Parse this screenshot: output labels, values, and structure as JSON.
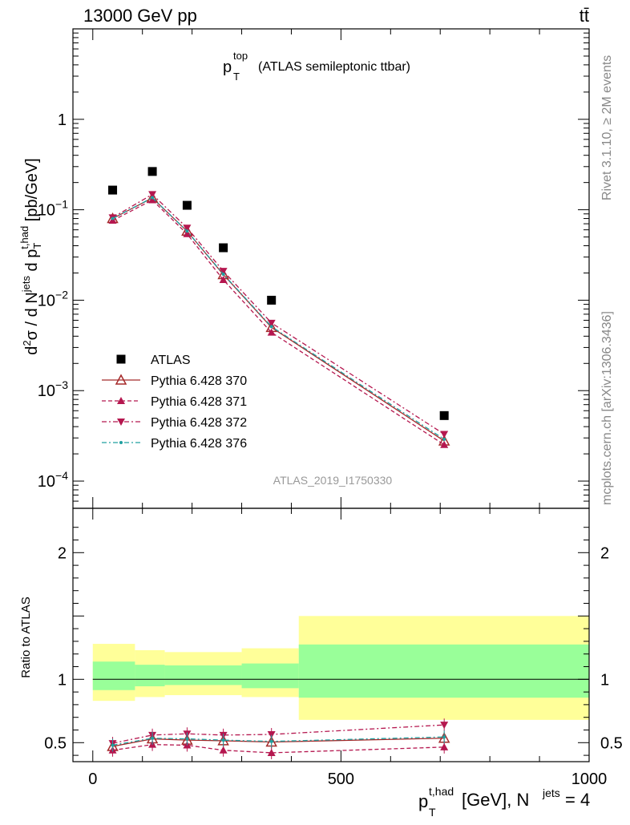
{
  "header": {
    "left_label": "13000 GeV pp",
    "right_label": "tt̄"
  },
  "side_labels": {
    "rivet": "Rivet 3.1.10, ≥ 2M events",
    "mcplots": "mcplots.cern.ch [arXiv:1306.3436]"
  },
  "watermark": "ATLAS_2019_I1750330",
  "chart_data": [
    {
      "type": "scatter",
      "title": "p_T^top (ATLAS semileptonic ttbar)",
      "title_main": "p",
      "title_sub": "T",
      "title_sup": "top",
      "title_rest": "(ATLAS semileptonic ttbar)",
      "ylabel": "d²σ / d N^jets d p_T^t,had [pb/GeV]",
      "yscale": "log",
      "ylim": [
        5e-05,
        10
      ],
      "xlim": [
        -40,
        1000
      ],
      "y_ticks": [
        {
          "value": 1,
          "label": "1"
        },
        {
          "value": 0.1,
          "base": "10",
          "exp": "−1"
        },
        {
          "value": 0.01,
          "base": "10",
          "exp": "−2"
        },
        {
          "value": 0.001,
          "base": "10",
          "exp": "−3"
        },
        {
          "value": 0.0001,
          "base": "10",
          "exp": "−4"
        }
      ],
      "legend_position": "lower-left",
      "x": [
        40,
        120,
        190,
        263,
        360,
        708
      ],
      "series": [
        {
          "name": "ATLAS",
          "marker": "square",
          "color": "#000000",
          "values": [
            0.165,
            0.265,
            0.112,
            0.038,
            0.01,
            0.00053
          ]
        },
        {
          "name": "Pythia 6.428 370",
          "marker": "triangle-open",
          "color": "#a52a2a",
          "dash": "",
          "values": [
            0.08,
            0.135,
            0.058,
            0.0192,
            0.005,
            0.000278
          ]
        },
        {
          "name": "Pythia 6.428 371",
          "marker": "triangle-up",
          "color": "#b5174f",
          "dash": "5,3",
          "values": [
            0.076,
            0.128,
            0.054,
            0.0168,
            0.0044,
            0.000252
          ]
        },
        {
          "name": "Pythia 6.428 372",
          "marker": "triangle-down",
          "color": "#b5174f",
          "dash": "6,3,2,3",
          "values": [
            0.082,
            0.148,
            0.063,
            0.021,
            0.0056,
            0.00033
          ]
        },
        {
          "name": "Pythia 6.428 376",
          "marker": "dot",
          "color": "#20a0a0",
          "dash": "6,3,2,3",
          "values": [
            0.08,
            0.136,
            0.058,
            0.0194,
            0.0051,
            0.00029
          ]
        }
      ]
    },
    {
      "type": "scatter",
      "ylabel": "Ratio to ATLAS",
      "xlabel": "p_T^t,had [GeV], N^jets = 4",
      "xlabel_main": "p",
      "xlabel_sub": "T",
      "xlabel_sup": "t,had",
      "xlabel_rest": " [GeV], N",
      "xlabel_sup2": "jets",
      "xlabel_tail": " = 4",
      "ylim": [
        0.35,
        2.35
      ],
      "xlim": [
        -40,
        1000
      ],
      "x_ticks": [
        0,
        500,
        1000
      ],
      "y_ticks": [
        0.5,
        1,
        2
      ],
      "y_tick_labels": [
        "0.5",
        "1",
        "2"
      ],
      "bands": [
        {
          "x0": 0,
          "x1": 85,
          "stat_lo": 0.915,
          "stat_hi": 1.14,
          "tot_lo": 0.83,
          "tot_hi": 1.28
        },
        {
          "x0": 85,
          "x1": 145,
          "stat_lo": 0.945,
          "stat_hi": 1.115,
          "tot_lo": 0.86,
          "tot_hi": 1.23
        },
        {
          "x0": 145,
          "x1": 300,
          "stat_lo": 0.955,
          "stat_hi": 1.11,
          "tot_lo": 0.875,
          "tot_hi": 1.215
        },
        {
          "x0": 300,
          "x1": 415,
          "stat_lo": 0.93,
          "stat_hi": 1.125,
          "tot_lo": 0.86,
          "tot_hi": 1.245
        },
        {
          "x0": 415,
          "x1": 1000,
          "stat_lo": 0.855,
          "stat_hi": 1.275,
          "tot_lo": 0.68,
          "tot_hi": 1.5
        }
      ],
      "x": [
        40,
        120,
        190,
        263,
        360,
        708
      ],
      "series": [
        {
          "name": "Pythia 6.428 370",
          "values": [
            0.47,
            0.53,
            0.52,
            0.515,
            0.505,
            0.535
          ]
        },
        {
          "name": "Pythia 6.428 371",
          "values": [
            0.44,
            0.485,
            0.48,
            0.44,
            0.42,
            0.465
          ]
        },
        {
          "name": "Pythia 6.428 372",
          "values": [
            0.495,
            0.56,
            0.57,
            0.56,
            0.565,
            0.64
          ]
        },
        {
          "name": "Pythia 6.428 376",
          "values": [
            0.48,
            0.535,
            0.53,
            0.52,
            0.51,
            0.545
          ]
        }
      ]
    }
  ]
}
